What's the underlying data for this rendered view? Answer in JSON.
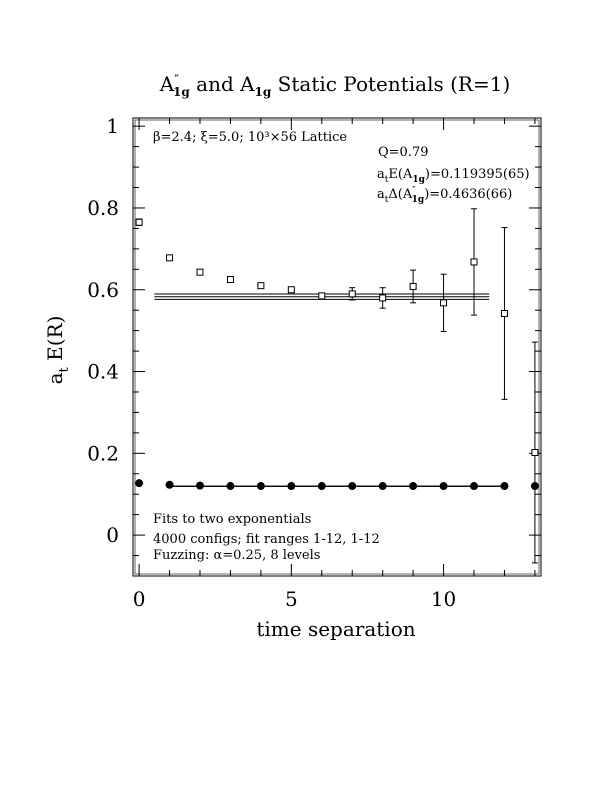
{
  "chart_data": {
    "type": "scatter",
    "title": {
      "prefix": "A",
      "sup1": "″",
      "sub1": "1g",
      "mid": " and A",
      "sub2": "1g",
      "suffix": " Static Potentials (R=1)"
    },
    "xlabel": "time separation",
    "ylabel": {
      "main": "a",
      "sub": "t",
      "rest": " E(R)"
    },
    "xlim": [
      -0.2,
      13.2
    ],
    "ylim": [
      -0.1,
      1.02
    ],
    "x_ticks": [
      0,
      5,
      10
    ],
    "y_ticks": [
      0,
      0.2,
      0.4,
      0.6,
      0.8,
      1
    ],
    "x_tick_labels": [
      "0",
      "5",
      "10"
    ],
    "y_tick_labels": [
      "0",
      "0.2",
      "0.4",
      "0.6",
      "0.8",
      "1"
    ],
    "annotations": {
      "lattice": "β=2.4;  ξ=5.0;  10³×56 Lattice",
      "q": "Q=0.79",
      "e_a1g": {
        "a": "a",
        "t": "t",
        "mid": "E(A",
        "sub": "1g",
        "end": ")=0.119395(65)"
      },
      "delta": {
        "a": "a",
        "t": "t",
        "mid": "Δ(A",
        "sup": "″",
        "sub": "1g",
        "end": ")=0.4636(66)"
      },
      "fits": "Fits to two exponentials",
      "configs": "4000 configs; fit ranges 1-12, 1-12",
      "fuzzing": "Fuzzing: α=0.25, 8 levels"
    },
    "series": [
      {
        "name": "A1g",
        "marker": "filled-circle",
        "x": [
          0,
          1,
          2,
          3,
          4,
          5,
          6,
          7,
          8,
          9,
          10,
          11,
          12,
          13
        ],
        "y": [
          0.127,
          0.123,
          0.121,
          0.12,
          0.12,
          0.12,
          0.12,
          0.12,
          0.12,
          0.12,
          0.12,
          0.12,
          0.12,
          0.12
        ],
        "err": [
          0,
          0,
          0,
          0,
          0,
          0,
          0,
          0,
          0,
          0,
          0,
          0,
          0,
          0
        ]
      },
      {
        "name": "A''1g",
        "marker": "open-square",
        "x": [
          0,
          1,
          2,
          3,
          4,
          5,
          6,
          7,
          8,
          9,
          10,
          11,
          12,
          13
        ],
        "y": [
          0.765,
          0.678,
          0.643,
          0.625,
          0.61,
          0.6,
          0.585,
          0.59,
          0.58,
          0.608,
          0.568,
          0.668,
          0.542,
          0.202
        ],
        "err": [
          0.008,
          0.006,
          0.006,
          0.006,
          0.006,
          0.006,
          0.006,
          0.015,
          0.025,
          0.04,
          0.07,
          0.13,
          0.21,
          0.27
        ]
      }
    ],
    "fit_lines": [
      {
        "name": "A1g-fit",
        "x_range": [
          1,
          12
        ],
        "y": 0.1194,
        "band": 0.0003
      },
      {
        "name": "A''1g-fit",
        "x_range": [
          0.5,
          11.5
        ],
        "y": 0.583,
        "band": 0.0066
      }
    ]
  }
}
